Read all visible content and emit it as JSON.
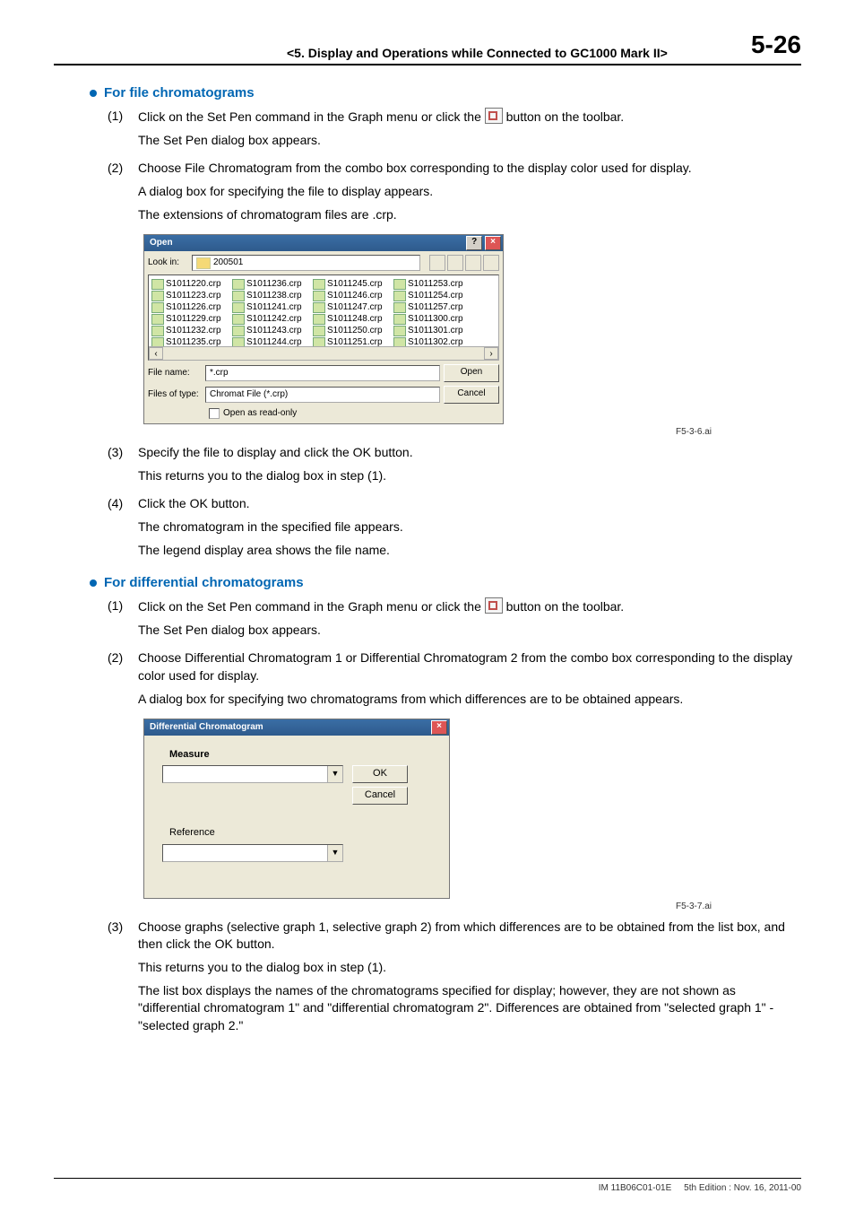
{
  "header": {
    "chapter": "<5.  Display and Operations while Connected to GC1000 Mark II>",
    "page_number": "5-26"
  },
  "section1": {
    "title": "For file chromatograms",
    "steps": [
      {
        "num": "(1)",
        "line1a": "Click on the Set Pen command in the Graph menu or click the ",
        "line1b": " button on the toolbar.",
        "line2": "The Set Pen dialog box appears."
      },
      {
        "num": "(2)",
        "line1": "Choose File Chromatogram from the combo box corresponding to the display color used for display.",
        "line2": "A dialog box for specifying the file to display appears.",
        "line3": "The extensions of chromatogram files are .crp."
      },
      {
        "num": "(3)",
        "line1": "Specify the file to display and click the OK button.",
        "line2": "This returns you to the dialog box in step (1)."
      },
      {
        "num": "(4)",
        "line1": "Click the OK button.",
        "line2": "The chromatogram in the specified file appears.",
        "line3": "The legend display area shows the file name."
      }
    ]
  },
  "open_dialog": {
    "title": "Open",
    "look_in_label": "Look in:",
    "folder": "200501",
    "files_col1": [
      "S1011220.crp",
      "S1011223.crp",
      "S1011226.crp",
      "S1011229.crp",
      "S1011232.crp",
      "S1011235.crp"
    ],
    "files_col2": [
      "S1011236.crp",
      "S1011238.crp",
      "S1011241.crp",
      "S1011242.crp",
      "S1011243.crp",
      "S1011244.crp"
    ],
    "files_col3": [
      "S1011245.crp",
      "S1011246.crp",
      "S1011247.crp",
      "S1011248.crp",
      "S1011250.crp",
      "S1011251.crp"
    ],
    "files_col4": [
      "S1011253.crp",
      "S1011254.crp",
      "S1011257.crp",
      "S1011300.crp",
      "S1011301.crp",
      "S1011302.crp"
    ],
    "file_name_label": "File name:",
    "file_name_value": "*.crp",
    "file_type_label": "Files of type:",
    "file_type_value": "Chromat File (*.crp)",
    "open_btn": "Open",
    "cancel_btn": "Cancel",
    "readonly_label": "Open as read-only",
    "caption": "F5-3-6.ai"
  },
  "section2": {
    "title": "For differential chromatograms",
    "steps": [
      {
        "num": "(1)",
        "line1a": "Click on the Set Pen command in the Graph menu or click the ",
        "line1b": " button on the toolbar.",
        "line2": "The Set Pen dialog box appears."
      },
      {
        "num": "(2)",
        "line1": "Choose Differential Chromatogram 1 or Differential Chromatogram 2 from the combo box corresponding to the display color used for display.",
        "line2": "A dialog box for specifying two chromatograms from which differences are to be obtained appears."
      },
      {
        "num": "(3)",
        "line1": "Choose graphs (selective graph 1, selective graph 2) from which differences are to be obtained from the list box, and then click the OK button.",
        "line2": "This returns you to the dialog box in step (1).",
        "line3": "The list box displays the names of the chromatograms specified for display; however, they are not shown as \"differential chromatogram 1\" and \"differential chromatogram 2\". Differences are obtained from \"selected graph 1\" - \"selected graph 2.\""
      }
    ]
  },
  "diff_dialog": {
    "title": "Differential Chromatogram",
    "measure_label": "Measure",
    "reference_label": "Reference",
    "ok_btn": "OK",
    "cancel_btn": "Cancel",
    "caption": "F5-3-7.ai"
  },
  "footer": {
    "doc_id": "IM 11B06C01-01E",
    "edition": "5th Edition : Nov. 16, 2011-00"
  }
}
